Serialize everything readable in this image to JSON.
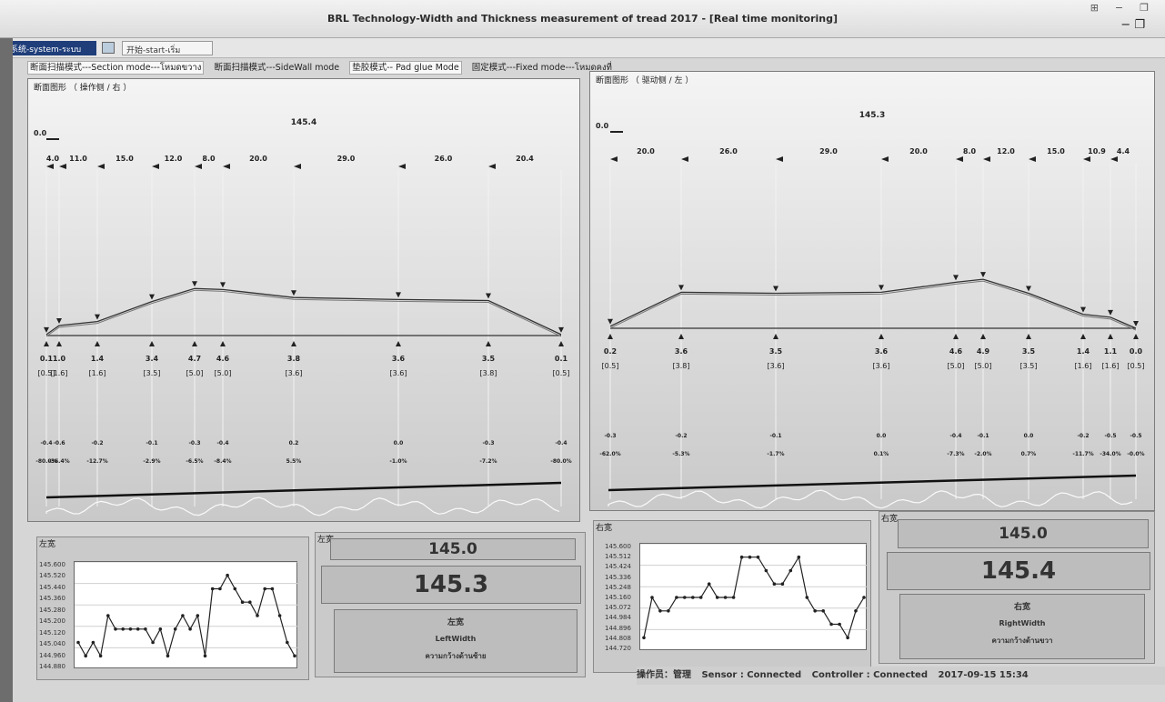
{
  "title": "BRL Technology-Width and Thickness measurement of tread 2017 - [Real time monitoring]",
  "menu": {
    "active": "系统-system-ระบบ",
    "tab": "开始-start-เริ่ม"
  },
  "modes": [
    "断面扫描模式---Section mode---โหมดขวาง",
    "断面扫描模式---SideWall mode",
    "垫胶模式-- Pad glue Mode",
    "固定模式---Fixed mode---โหมดคงที่"
  ],
  "left_panel": {
    "caption": "断面图形 （ 操作侧 / 右 ）",
    "total_width": "145.4",
    "offset": "0.0",
    "section_widths": [
      "4.0",
      "11.0",
      "15.0",
      "12.0",
      "8.0",
      "20.0",
      "29.0",
      "26.0",
      "20.4"
    ],
    "thickness": [
      "0.1",
      "1.0",
      "1.4",
      "3.4",
      "4.7",
      "4.6",
      "3.8",
      "3.6",
      "3.5",
      "0.1"
    ],
    "std_thickness": [
      "[0.5]",
      "[1.6]",
      "[1.6]",
      "[3.5]",
      "[5.0]",
      "[5.0]",
      "[3.6]",
      "[3.6]",
      "[3.8]",
      "[0.5]"
    ],
    "deviation": [
      "-0.4",
      "-0.6",
      "-0.2",
      "-0.1",
      "-0.3",
      "-0.4",
      "0.2",
      "0.0",
      "-0.3",
      "-0.4"
    ],
    "deviation_pct": [
      "-80.0%",
      "-36.4%",
      "-12.7%",
      "-2.9%",
      "-6.5%",
      "-8.4%",
      "5.5%",
      "-1.0%",
      "-7.2%",
      "-80.0%"
    ],
    "profile": [
      0.1,
      1.0,
      1.4,
      3.4,
      4.7,
      4.6,
      3.8,
      3.6,
      3.5,
      0.1
    ]
  },
  "right_panel": {
    "caption": "断面图形 （ 驱动侧 / 左 ）",
    "total_width": "145.3",
    "offset": "0.0",
    "section_widths": [
      "20.0",
      "26.0",
      "29.0",
      "20.0",
      "8.0",
      "12.0",
      "15.0",
      "10.9",
      "4.4"
    ],
    "thickness": [
      "0.2",
      "3.6",
      "3.5",
      "3.6",
      "4.6",
      "4.9",
      "3.5",
      "1.4",
      "1.1",
      "0.0"
    ],
    "std_thickness": [
      "[0.5]",
      "[3.8]",
      "[3.6]",
      "[3.6]",
      "[5.0]",
      "[5.0]",
      "[3.5]",
      "[1.6]",
      "[1.6]",
      "[0.5]"
    ],
    "deviation": [
      "-0.3",
      "-0.2",
      "-0.1",
      "0.0",
      "-0.4",
      "-0.1",
      "0.0",
      "-0.2",
      "-0.5",
      "-0.5"
    ],
    "deviation_pct": [
      "-62.0%",
      "-5.3%",
      "-1.7%",
      "0.1%",
      "-7.3%",
      "-2.0%",
      "0.7%",
      "-11.7%",
      "-34.0%",
      "-0.0%"
    ],
    "profile": [
      0.2,
      3.6,
      3.5,
      3.6,
      4.6,
      4.9,
      3.5,
      1.4,
      1.1,
      0.0
    ]
  },
  "left_trend": {
    "caption": "左宽",
    "ylabels": [
      "145.600",
      "145.520",
      "145.440",
      "145.360",
      "145.280",
      "145.200",
      "145.120",
      "145.040",
      "144.960",
      "144.880"
    ],
    "values": [
      145.1,
      145.0,
      145.1,
      145.0,
      145.3,
      145.2,
      145.2,
      145.2,
      145.2,
      145.2,
      145.1,
      145.2,
      145.0,
      145.2,
      145.3,
      145.2,
      145.3,
      145.0,
      145.5,
      145.5,
      145.6,
      145.5,
      145.4,
      145.4,
      145.3,
      145.5,
      145.5,
      145.3,
      145.1,
      145.0
    ]
  },
  "left_value": {
    "caption": "左宽",
    "std": "145.0",
    "actual": "145.3",
    "label_cn": "左宽",
    "label_en": "LeftWidth",
    "label_th": "ความกว้างด้านซ้าย"
  },
  "right_trend": {
    "caption": "右宽",
    "ylabels": [
      "145.600",
      "145.512",
      "145.424",
      "145.336",
      "145.248",
      "145.160",
      "145.072",
      "144.984",
      "144.896",
      "144.808",
      "144.720"
    ],
    "values": [
      145.0,
      145.3,
      145.2,
      145.2,
      145.3,
      145.3,
      145.3,
      145.3,
      145.4,
      145.3,
      145.3,
      145.3,
      145.6,
      145.6,
      145.6,
      145.5,
      145.4,
      145.4,
      145.5,
      145.6,
      145.3,
      145.2,
      145.2,
      145.1,
      145.1,
      145.0,
      145.2,
      145.3
    ]
  },
  "right_value": {
    "caption": "右宽",
    "std": "145.0",
    "actual": "145.4",
    "label_cn": "右宽",
    "label_en": "RightWidth",
    "label_th": "ความกว้างด้านขวา"
  },
  "status": {
    "operator": "操作员：管理",
    "sensor": "Sensor : Connected",
    "controller": "Controller : Connected",
    "datetime": "2017-09-15 15:34"
  }
}
